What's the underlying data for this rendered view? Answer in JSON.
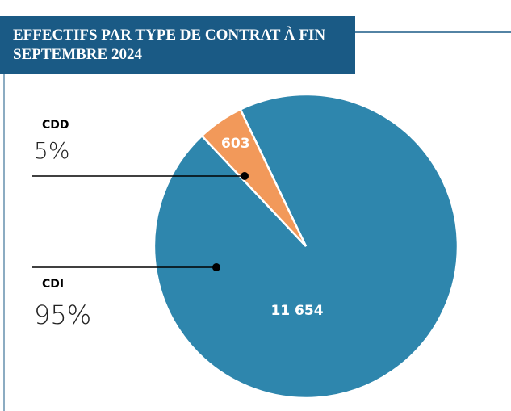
{
  "chart_data": {
    "type": "pie",
    "title": "EFFECTIFS PAR TYPE DE CONTRAT À FIN SEPTEMBRE 2024",
    "categories": [
      "CDI",
      "CDD"
    ],
    "values": [
      11654,
      603
    ],
    "value_labels": [
      "11 654",
      "603"
    ],
    "share_labels": [
      "95%",
      "5%"
    ],
    "colors": [
      "#2e86ad",
      "#f2995a"
    ]
  }
}
